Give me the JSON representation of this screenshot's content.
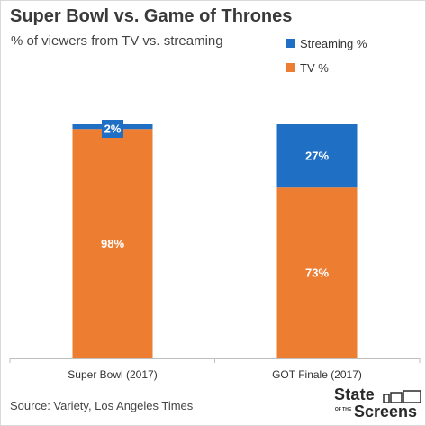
{
  "header": {
    "title": "Super Bowl vs. Game of Thrones",
    "subtitle": "% of viewers from TV vs. streaming"
  },
  "legend": {
    "items": [
      {
        "label": "Streaming %",
        "color": "#1f6fc5"
      },
      {
        "label": "TV %",
        "color": "#ed7d31"
      }
    ]
  },
  "chart_data": {
    "type": "bar",
    "stacked": true,
    "title": "Super Bowl vs. Game of Thrones",
    "subtitle": "% of viewers from TV vs. streaming",
    "categories": [
      "Super Bowl (2017)",
      "GOT Finale (2017)"
    ],
    "series": [
      {
        "name": "TV %",
        "values": [
          98,
          73
        ],
        "labels": [
          "98%",
          "73%"
        ],
        "color": "#ed7d31"
      },
      {
        "name": "Streaming %",
        "values": [
          2,
          27
        ],
        "labels": [
          "2%",
          "27%"
        ],
        "color": "#1f6fc5"
      }
    ],
    "ylim": [
      0,
      100
    ],
    "grid": false,
    "legend_position": "top-right"
  },
  "footer": {
    "source": "Source: Variety, Los Angeles Times",
    "logo_top": "State",
    "logo_of": "OF THE",
    "logo_bottom": "Screens"
  }
}
